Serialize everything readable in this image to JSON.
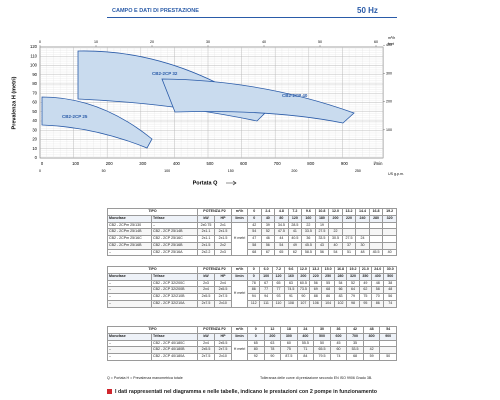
{
  "header": {
    "title": "CAMPO E DATI DI PRESTAZIONE",
    "frequency": "50 Hz"
  },
  "chart": {
    "y_label": "Prevalenza H (metri)",
    "x_label": "Portata Q",
    "x_unit": "l/min",
    "top_unit": "m³/h",
    "right_unit": "feet",
    "bottom_unit": "US g.p.m.",
    "yticks": [
      "0",
      "10",
      "20",
      "30",
      "40",
      "50",
      "60",
      "70",
      "80",
      "90",
      "100",
      "110",
      "120"
    ],
    "xticks": [
      "0",
      "100",
      "200",
      "300",
      "400",
      "500",
      "600",
      "700",
      "800",
      "900"
    ],
    "top_ticks": [
      "0",
      "10",
      "20",
      "30",
      "40",
      "50",
      "60"
    ],
    "right_ticks": [
      "100",
      "200",
      "300",
      "400"
    ],
    "gpm_ticks": [
      "0",
      "50",
      "100",
      "150",
      "200",
      "250"
    ],
    "regions": [
      {
        "label": "CB2-2CP 25"
      },
      {
        "label": "CB2-2CP 32"
      },
      {
        "label": "CB2-2CP 40"
      }
    ]
  },
  "tables": [
    {
      "head": {
        "tipo": "TIPO",
        "potenza": "POTENZA P2",
        "q_unit": "m³/h",
        "monofase": "Monofase",
        "trifase": "Trifase",
        "kw": "kW",
        "hp": "HP",
        "lmin_unit": "l/min",
        "h_unit": "H metri",
        "q_values": [
          "0",
          "2.4",
          "4.8",
          "7.2",
          "9.6",
          "10.8",
          "12.0",
          "13.2",
          "14.4",
          "16.8",
          "19.2"
        ],
        "lmin_values": [
          "0",
          "40",
          "80",
          "120",
          "160",
          "180",
          "200",
          "220",
          "240",
          "280",
          "320"
        ]
      },
      "rows": [
        {
          "mono": "CB2 - 2CPm 25/130",
          "tri": "–",
          "kw": "2x0.75",
          "hp": "2x1",
          "h": [
            "42",
            "39",
            "34.5",
            "28.5",
            "22",
            "19"
          ]
        },
        {
          "mono": "CB2 - 2CPm 25/14B",
          "tri": "CB2 - 2CP 25/14B",
          "kw": "2x1.1",
          "hp": "2x1.5",
          "h": [
            "54",
            "52",
            "47.5",
            "41",
            "33.5",
            "27.5",
            "22"
          ]
        },
        {
          "mono": "CB2 - 2CPm 25/16C",
          "tri": "CB2 - 2CP 25/16C",
          "kw": "2x1.1",
          "hp": "2x1.5",
          "h": [
            "47",
            "46",
            "44",
            "40.5",
            "36",
            "33.5",
            "30.5",
            "27.5",
            "24"
          ]
        },
        {
          "mono": "CB2 - 2CPm 25/16B",
          "tri": "CB2 - 2CP 25/16B",
          "kw": "2x1.5",
          "hp": "2x2",
          "h": [
            "58",
            "56",
            "54",
            "49",
            "45.5",
            "43",
            "40",
            "37",
            "30"
          ]
        },
        {
          "mono": "–",
          "tri": "CB2 - 2CP 25/16A",
          "kw": "2x2.2",
          "hp": "2x3",
          "h": [
            "68",
            "67",
            "65",
            "62",
            "58.5",
            "56",
            "54",
            "51",
            "48",
            "45.5",
            "40"
          ]
        }
      ]
    },
    {
      "head": {
        "tipo": "TIPO",
        "potenza": "POTENZA P2",
        "q_unit": "m³/h",
        "monofase": "Monofase",
        "trifase": "Trifase",
        "kw": "kW",
        "hp": "HP",
        "lmin_unit": "l/min",
        "h_unit": "H metri",
        "q_values": [
          "0",
          "6.0",
          "7.2",
          "9.6",
          "12.0",
          "13.2",
          "15.0",
          "16.8",
          "19.2",
          "21.0",
          "24.0",
          "30.0"
        ],
        "lmin_values": [
          "0",
          "100",
          "120",
          "160",
          "200",
          "220",
          "250",
          "280",
          "320",
          "350",
          "400",
          "500"
        ]
      },
      "rows": [
        {
          "mono": "–",
          "tri": "CB2 - 2CP 32/200C",
          "kw": "2x3",
          "hp": "2x4",
          "h": [
            "78",
            "67",
            "65",
            "63",
            "60.5",
            "56",
            "55",
            "54",
            "52",
            "49",
            "48",
            "38"
          ]
        },
        {
          "mono": "–",
          "tri": "CB2 - 2CP 32/200B",
          "kw": "2x4",
          "hp": "2x5.5",
          "h": [
            "86",
            "77",
            "77",
            "74.5",
            "73.5",
            "69",
            "68",
            "66",
            "64",
            "62",
            "58",
            "48"
          ]
        },
        {
          "mono": "–",
          "tri": "CB2 - 2CP 32/210B",
          "kw": "2x5.5",
          "hp": "2x7.5",
          "h": [
            "94",
            "94",
            "93",
            "91",
            "90",
            "88",
            "86",
            "83",
            "79",
            "75",
            "70",
            "56"
          ]
        },
        {
          "mono": "–",
          "tri": "CB2 - 2CP 32/210A",
          "kw": "2x7.5",
          "hp": "2x10",
          "h": [
            "112",
            "111",
            "110",
            "108",
            "107",
            "106",
            "104",
            "102",
            "98",
            "95",
            "86",
            "74"
          ]
        }
      ]
    },
    {
      "head": {
        "tipo": "TIPO",
        "potenza": "POTENZA P2",
        "q_unit": "m³/h",
        "monofase": "Monofase",
        "trifase": "Trifase",
        "kw": "kW",
        "hp": "HP",
        "lmin_unit": "l/min",
        "h_unit": "H metri",
        "q_values": [
          "0",
          "12",
          "18",
          "24",
          "30",
          "36",
          "42",
          "48",
          "54"
        ],
        "lmin_values": [
          "0",
          "200",
          "300",
          "400",
          "500",
          "600",
          "700",
          "800",
          "900"
        ]
      },
      "rows": [
        {
          "mono": "–",
          "tri": "CB2 - 2CP 40/180C",
          "kw": "2x4",
          "hp": "2x5.5",
          "h": [
            "65",
            "63",
            "60",
            "55.5",
            "50",
            "45",
            "35"
          ]
        },
        {
          "mono": "–",
          "tri": "CB2 - 2CP 40/180B",
          "kw": "2x5.5",
          "hp": "2x7.5",
          "h": [
            "80",
            "78",
            "75",
            "71",
            "65.5",
            "60",
            "53.5",
            "42"
          ]
        },
        {
          "mono": "–",
          "tri": "CB2 - 2CP 40/180A",
          "kw": "2x7.5",
          "hp": "2x10",
          "h": [
            "92",
            "90",
            "87.5",
            "84",
            "79.5",
            "74",
            "68",
            "59",
            "50"
          ]
        }
      ]
    }
  ],
  "footer": {
    "legend": "Q = Portata   H = Prevalenza manometrica totale",
    "tolerance": "Tolleranza delle curve di prestazione secondo EN ISO 9906 Grado 3B.",
    "note": "I dati rappresentati nel diagramma e nelle tabelle, indicano le prestazioni con 2 pompe in funzionamento"
  }
}
